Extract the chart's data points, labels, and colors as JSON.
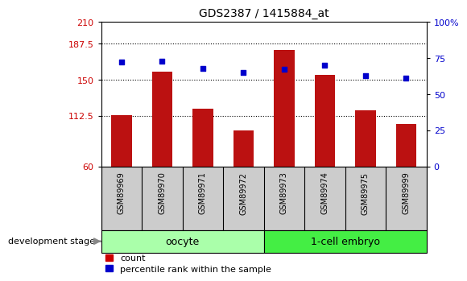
{
  "title": "GDS2387 / 1415884_at",
  "samples": [
    "GSM89969",
    "GSM89970",
    "GSM89971",
    "GSM89972",
    "GSM89973",
    "GSM89974",
    "GSM89975",
    "GSM89999"
  ],
  "count_values": [
    113,
    158,
    120,
    97,
    181,
    155,
    118,
    104
  ],
  "percentile_values": [
    72,
    73,
    68,
    65,
    67,
    70,
    63,
    61
  ],
  "ylim_left": [
    60,
    210
  ],
  "ylim_right": [
    0,
    100
  ],
  "yticks_left": [
    60,
    112.5,
    150,
    187.5,
    210
  ],
  "ytick_labels_left": [
    "60",
    "112.5",
    "150",
    "187.5",
    "210"
  ],
  "yticks_right": [
    0,
    25,
    50,
    75,
    100
  ],
  "ytick_labels_right": [
    "0",
    "25",
    "50",
    "75",
    "100%"
  ],
  "groups": [
    {
      "label": "oocyte",
      "start": 0,
      "end": 4,
      "color": "#aaffaa"
    },
    {
      "label": "1-cell embryo",
      "start": 4,
      "end": 8,
      "color": "#44ee44"
    }
  ],
  "bar_color": "#bb1111",
  "scatter_color": "#0000cc",
  "bar_width": 0.5,
  "bg_color": "#ffffff",
  "plot_bg": "#ffffff",
  "left_label_color": "#cc0000",
  "right_label_color": "#0000cc",
  "legend_count_color": "#cc0000",
  "legend_pct_color": "#0000cc",
  "xlabel_area_bg": "#cccccc",
  "dev_stage_text": "development stage",
  "legend_count_label": "count",
  "legend_pct_label": "percentile rank within the sample"
}
